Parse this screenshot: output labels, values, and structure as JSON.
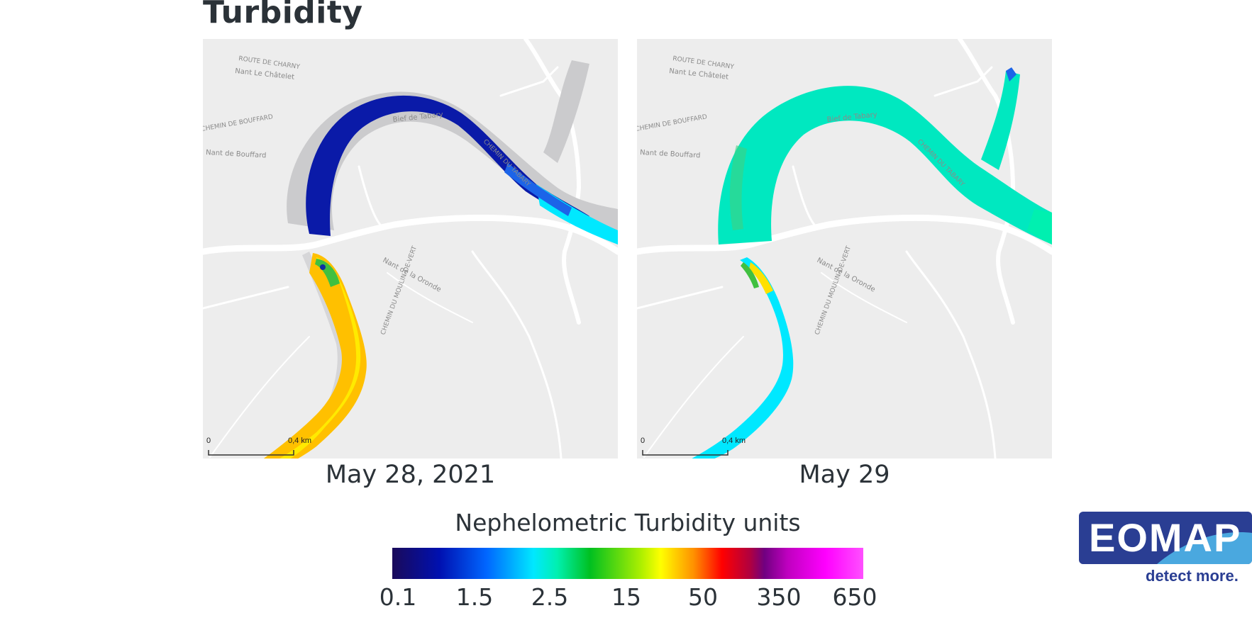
{
  "title": "Turbidity",
  "maps": [
    {
      "date": "May 28, 2021",
      "scale_start": "0",
      "scale_end": "0,4 km"
    },
    {
      "date": "May 29",
      "scale_start": "0",
      "scale_end": "0,4 km"
    }
  ],
  "map_labels": {
    "road_charny": "ROUTE DE CHARNY",
    "nant_chatelet": "Nant Le Châtelet",
    "chemin_bouffard": "CHEMIN DE BOUFFARD",
    "nant_bouffard": "Nant de Bouffard",
    "bief_tabary": "Bief de Tabary",
    "chemin_tabary": "CHEMIN DU TABARY",
    "nant_oronde": "Nant de la Oronde",
    "chemin_moulin": "CHEMIN DU MOULIN-DE-VERT"
  },
  "legend": {
    "title": "Nephelometric Turbidity units",
    "ticks": [
      "0.1",
      "1.5",
      "2.5",
      "15",
      "50",
      "350",
      "650"
    ]
  },
  "logo": {
    "name": "EOMAP",
    "tagline": "detect more."
  },
  "colors": {
    "very_low": "#0a1aa8",
    "low": "#00e8ff",
    "mid": "#00e8c0",
    "high": "#ffc000",
    "brand": "#2a3e93"
  }
}
